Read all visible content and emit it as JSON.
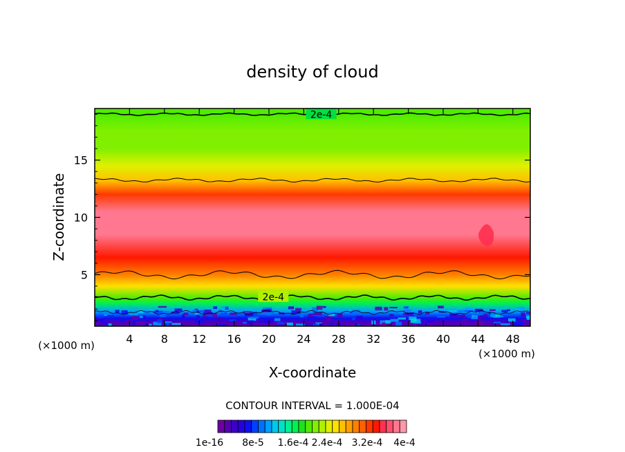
{
  "chart_data": {
    "type": "heatmap",
    "title": "density of cloud",
    "xlabel": "X-coordinate",
    "ylabel": "Z-coordinate",
    "x_unit_label": "(×1000 m)",
    "xlim": [
      0,
      50
    ],
    "ylim": [
      0.5,
      19.5
    ],
    "x_ticks": [
      4,
      8,
      12,
      16,
      20,
      24,
      28,
      32,
      36,
      40,
      44,
      48
    ],
    "y_ticks": [
      5,
      10,
      15
    ],
    "contour_interval_text": "CONTOUR INTERVAL = 1.000E-04",
    "contour_line_labels": [
      "2e-4",
      "2e-4"
    ],
    "contour_line_value": 0.0002,
    "colorbar_labels": [
      "1e-16",
      "8e-5",
      "1.6e-4",
      "2.4e-4",
      "3.2e-4",
      "4e-4"
    ],
    "colorbar_colors": [
      "#6c00a0",
      "#5400b4",
      "#3c00c8",
      "#2800e0",
      "#0c10f0",
      "#0040ff",
      "#0070ff",
      "#00a0ff",
      "#00c8f0",
      "#00e0c8",
      "#00f090",
      "#00f050",
      "#20e020",
      "#50ec00",
      "#80f000",
      "#b0f000",
      "#e0f000",
      "#ffe000",
      "#ffc000",
      "#ffa000",
      "#ff8000",
      "#ff6000",
      "#ff3800",
      "#ff1800",
      "#ff3050",
      "#ff5070",
      "#ff7890",
      "#ff98a8"
    ],
    "z_range": [
      1e-16,
      0.0004
    ],
    "profile_description_values": {
      "z": [
        0.8,
        1.2,
        1.8,
        2.5,
        3.0,
        4.0,
        5.0,
        6.5,
        8.5,
        10.5,
        12.0,
        13.2,
        14.5,
        16.0,
        17.5,
        19.0,
        19.5
      ],
      "density": [
        2e-05,
        6e-05,
        0.00011,
        0.00017,
        0.0002,
        0.00025,
        0.00029,
        0.00034,
        0.00038,
        0.00038,
        0.00032,
        0.00026,
        0.00023,
        0.00021,
        0.000205,
        0.0002,
        0.000195
      ]
    }
  }
}
